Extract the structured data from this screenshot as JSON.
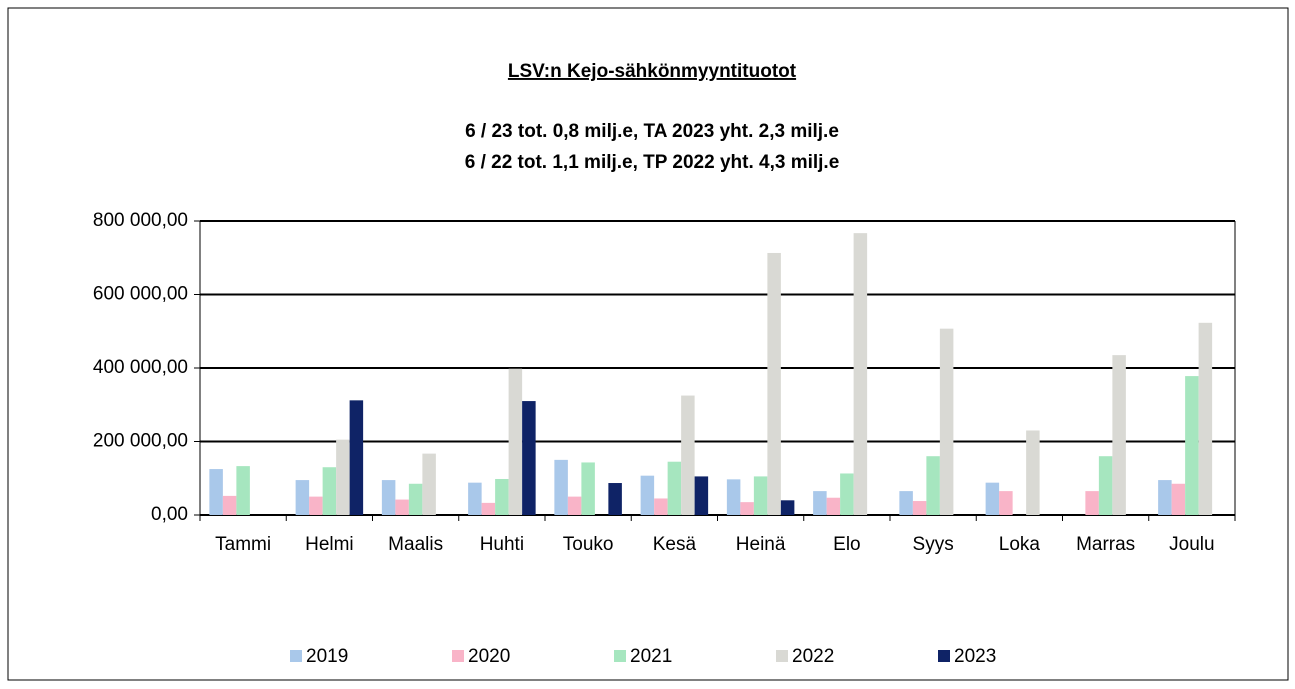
{
  "chart_data": {
    "type": "bar",
    "title": "LSV:n Kejo-sähkönmyyntituotot",
    "subtitle": [
      "6 / 23 tot. 0,8 milj.e, TA 2023 yht. 2,3 milj.e",
      "6 / 22 tot. 1,1 milj.e, TP 2022 yht. 4,3 milj.e"
    ],
    "categories": [
      "Tammi",
      "Helmi",
      "Maalis",
      "Huhti",
      "Touko",
      "Kesä",
      "Heinä",
      "Elo",
      "Syys",
      "Loka",
      "Marras",
      "Joulu"
    ],
    "series": [
      {
        "name": "2019",
        "color": "#a9c8ea",
        "values": [
          125000,
          95000,
          95000,
          88000,
          150000,
          107000,
          97000,
          65000,
          65000,
          88000,
          0,
          95000
        ]
      },
      {
        "name": "2020",
        "color": "#f9b4c8",
        "values": [
          52000,
          50000,
          42000,
          33000,
          50000,
          45000,
          35000,
          47000,
          38000,
          65000,
          65000,
          85000
        ]
      },
      {
        "name": "2021",
        "color": "#a6e6bf",
        "values": [
          133000,
          130000,
          85000,
          98000,
          143000,
          145000,
          105000,
          113000,
          160000,
          0,
          160000,
          378000
        ]
      },
      {
        "name": "2022",
        "color": "#d9d9d4",
        "values": [
          0,
          205000,
          167000,
          398000,
          0,
          325000,
          713000,
          767000,
          507000,
          230000,
          435000,
          523000
        ]
      },
      {
        "name": "2023",
        "color": "#0f2366",
        "values": [
          0,
          312000,
          0,
          310000,
          87000,
          105000,
          40000,
          null,
          null,
          null,
          null,
          null
        ]
      }
    ],
    "ylim": [
      0,
      800000
    ],
    "yticks": [
      {
        "value": 0,
        "label": "0,00"
      },
      {
        "value": 200000,
        "label": "200 000,00"
      },
      {
        "value": 400000,
        "label": "400 000,00"
      },
      {
        "value": 600000,
        "label": "600 000,00"
      },
      {
        "value": 800000,
        "label": "800 000,00"
      }
    ],
    "grid": true
  }
}
